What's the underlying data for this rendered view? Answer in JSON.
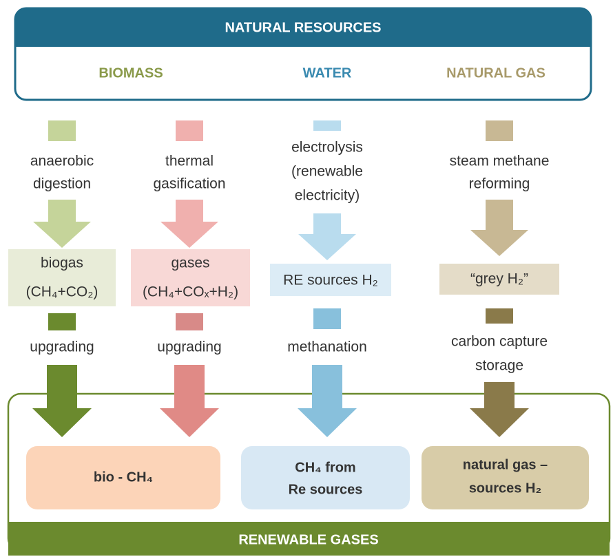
{
  "header": {
    "title": "NATURAL RESOURCES",
    "resources": [
      "BIOMASS",
      "WATER",
      "NATURAL GAS"
    ]
  },
  "columns": [
    {
      "process": [
        "anaerobic",
        "digestion"
      ],
      "intermediate": [
        "biogas",
        "(CH₄+CO₂)"
      ],
      "upgrade": [
        "upgrading"
      ]
    },
    {
      "process": [
        "thermal",
        "gasification"
      ],
      "intermediate": [
        "gases",
        "(CH₄+COₓ+H₂)"
      ],
      "upgrade": [
        "upgrading"
      ]
    },
    {
      "process": [
        "electrolysis",
        "(renewable",
        "electricity)"
      ],
      "intermediate": [
        "RE sources H₂"
      ],
      "upgrade": [
        "methanation"
      ]
    },
    {
      "process": [
        "steam methane",
        "reforming"
      ],
      "intermediate": [
        "“grey H₂”"
      ],
      "upgrade": [
        "carbon capture",
        "storage"
      ]
    }
  ],
  "outputs": [
    [
      "bio - CH₄"
    ],
    [
      "CH₄ from",
      "Re sources"
    ],
    [
      "natural gas –",
      "sources H₂"
    ]
  ],
  "footer": {
    "title": "RENEWABLE GASES"
  }
}
